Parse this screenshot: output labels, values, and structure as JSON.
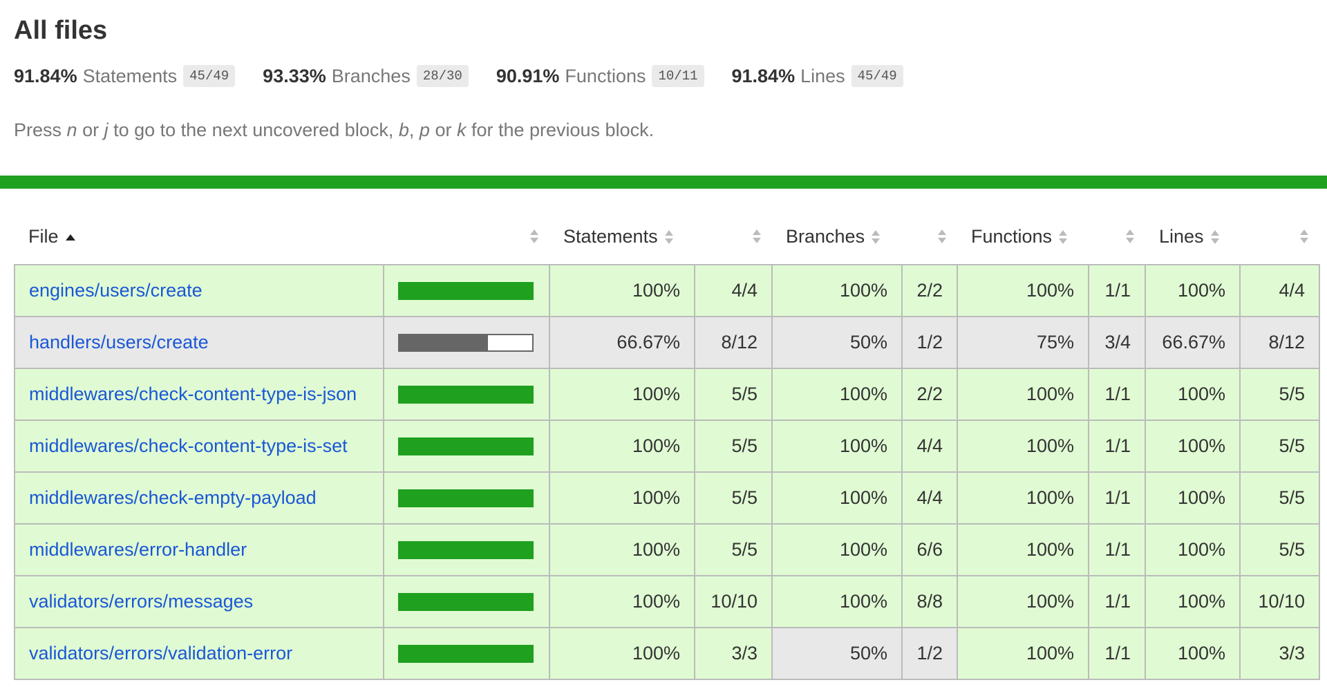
{
  "header": {
    "title": "All files",
    "summary": [
      {
        "pct": "91.84%",
        "label": "Statements",
        "frac": "45/49"
      },
      {
        "pct": "93.33%",
        "label": "Branches",
        "frac": "28/30"
      },
      {
        "pct": "90.91%",
        "label": "Functions",
        "frac": "10/11"
      },
      {
        "pct": "91.84%",
        "label": "Lines",
        "frac": "45/49"
      }
    ],
    "hint": {
      "t1": "Press ",
      "k1": "n",
      "t2": " or ",
      "k2": "j",
      "t3": " to go to the next uncovered block, ",
      "k3": "b",
      "t4": ", ",
      "k4": "p",
      "t5": " or ",
      "k5": "k",
      "t6": " for the previous block."
    }
  },
  "colors": {
    "high": "#e0fbd3",
    "medium": "#e8e8e8",
    "bar": "#1fa01f",
    "link": "#1a57d6"
  },
  "table": {
    "columns": {
      "file": "File",
      "statements": "Statements",
      "branches": "Branches",
      "functions": "Functions",
      "lines": "Lines"
    },
    "rows": [
      {
        "file": "engines/users/create",
        "coverage": 1.0,
        "stmt_pct": "100%",
        "stmt_frac": "4/4",
        "br_pct": "100%",
        "br_frac": "2/2",
        "fn_pct": "100%",
        "fn_frac": "1/1",
        "ln_pct": "100%",
        "ln_frac": "4/4"
      },
      {
        "file": "handlers/users/create",
        "coverage": 0.6667,
        "stmt_pct": "66.67%",
        "stmt_frac": "8/12",
        "br_pct": "50%",
        "br_frac": "1/2",
        "fn_pct": "75%",
        "fn_frac": "3/4",
        "ln_pct": "66.67%",
        "ln_frac": "8/12"
      },
      {
        "file": "middlewares/check-content-type-is-json",
        "coverage": 1.0,
        "stmt_pct": "100%",
        "stmt_frac": "5/5",
        "br_pct": "100%",
        "br_frac": "2/2",
        "fn_pct": "100%",
        "fn_frac": "1/1",
        "ln_pct": "100%",
        "ln_frac": "5/5"
      },
      {
        "file": "middlewares/check-content-type-is-set",
        "coverage": 1.0,
        "stmt_pct": "100%",
        "stmt_frac": "5/5",
        "br_pct": "100%",
        "br_frac": "4/4",
        "fn_pct": "100%",
        "fn_frac": "1/1",
        "ln_pct": "100%",
        "ln_frac": "5/5"
      },
      {
        "file": "middlewares/check-empty-payload",
        "coverage": 1.0,
        "stmt_pct": "100%",
        "stmt_frac": "5/5",
        "br_pct": "100%",
        "br_frac": "4/4",
        "fn_pct": "100%",
        "fn_frac": "1/1",
        "ln_pct": "100%",
        "ln_frac": "5/5"
      },
      {
        "file": "middlewares/error-handler",
        "coverage": 1.0,
        "stmt_pct": "100%",
        "stmt_frac": "5/5",
        "br_pct": "100%",
        "br_frac": "6/6",
        "fn_pct": "100%",
        "fn_frac": "1/1",
        "ln_pct": "100%",
        "ln_frac": "5/5"
      },
      {
        "file": "validators/errors/messages",
        "coverage": 1.0,
        "stmt_pct": "100%",
        "stmt_frac": "10/10",
        "br_pct": "100%",
        "br_frac": "8/8",
        "fn_pct": "100%",
        "fn_frac": "1/1",
        "ln_pct": "100%",
        "ln_frac": "10/10"
      },
      {
        "file": "validators/errors/validation-error",
        "coverage": 1.0,
        "stmt_pct": "100%",
        "stmt_frac": "3/3",
        "br_pct": "50%",
        "br_frac": "1/2",
        "fn_pct": "100%",
        "fn_frac": "1/1",
        "ln_pct": "100%",
        "ln_frac": "3/3"
      }
    ]
  }
}
